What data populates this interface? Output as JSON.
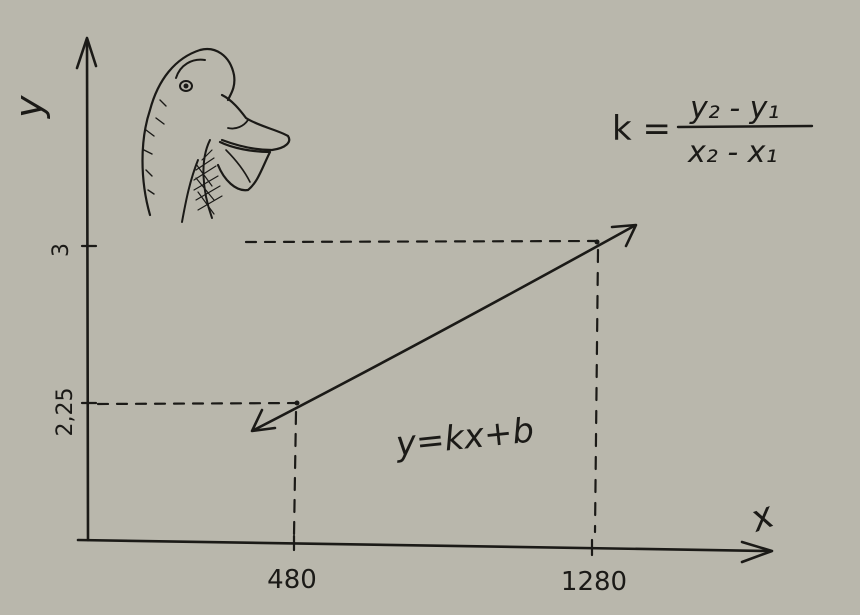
{
  "axes": {
    "x_label": "x",
    "y_label": "y"
  },
  "x_ticks": [
    "480",
    "1280"
  ],
  "y_ticks": [
    "2,25",
    "3"
  ],
  "formulas": {
    "slope_lhs": "k =",
    "slope_numerator": "y₂ - y₁",
    "slope_denominator": "x₂ - x₁",
    "line_equation": "y=kx+b"
  },
  "chart_data": {
    "type": "line",
    "points": [
      {
        "x": 480,
        "y": 2.25
      },
      {
        "x": 1280,
        "y": 3
      }
    ],
    "xlabel": "x",
    "ylabel": "y"
  },
  "colors": {
    "paper": "#b9b7ac",
    "ink": "#1b1a17"
  },
  "illustration": "duck-head-sketch"
}
